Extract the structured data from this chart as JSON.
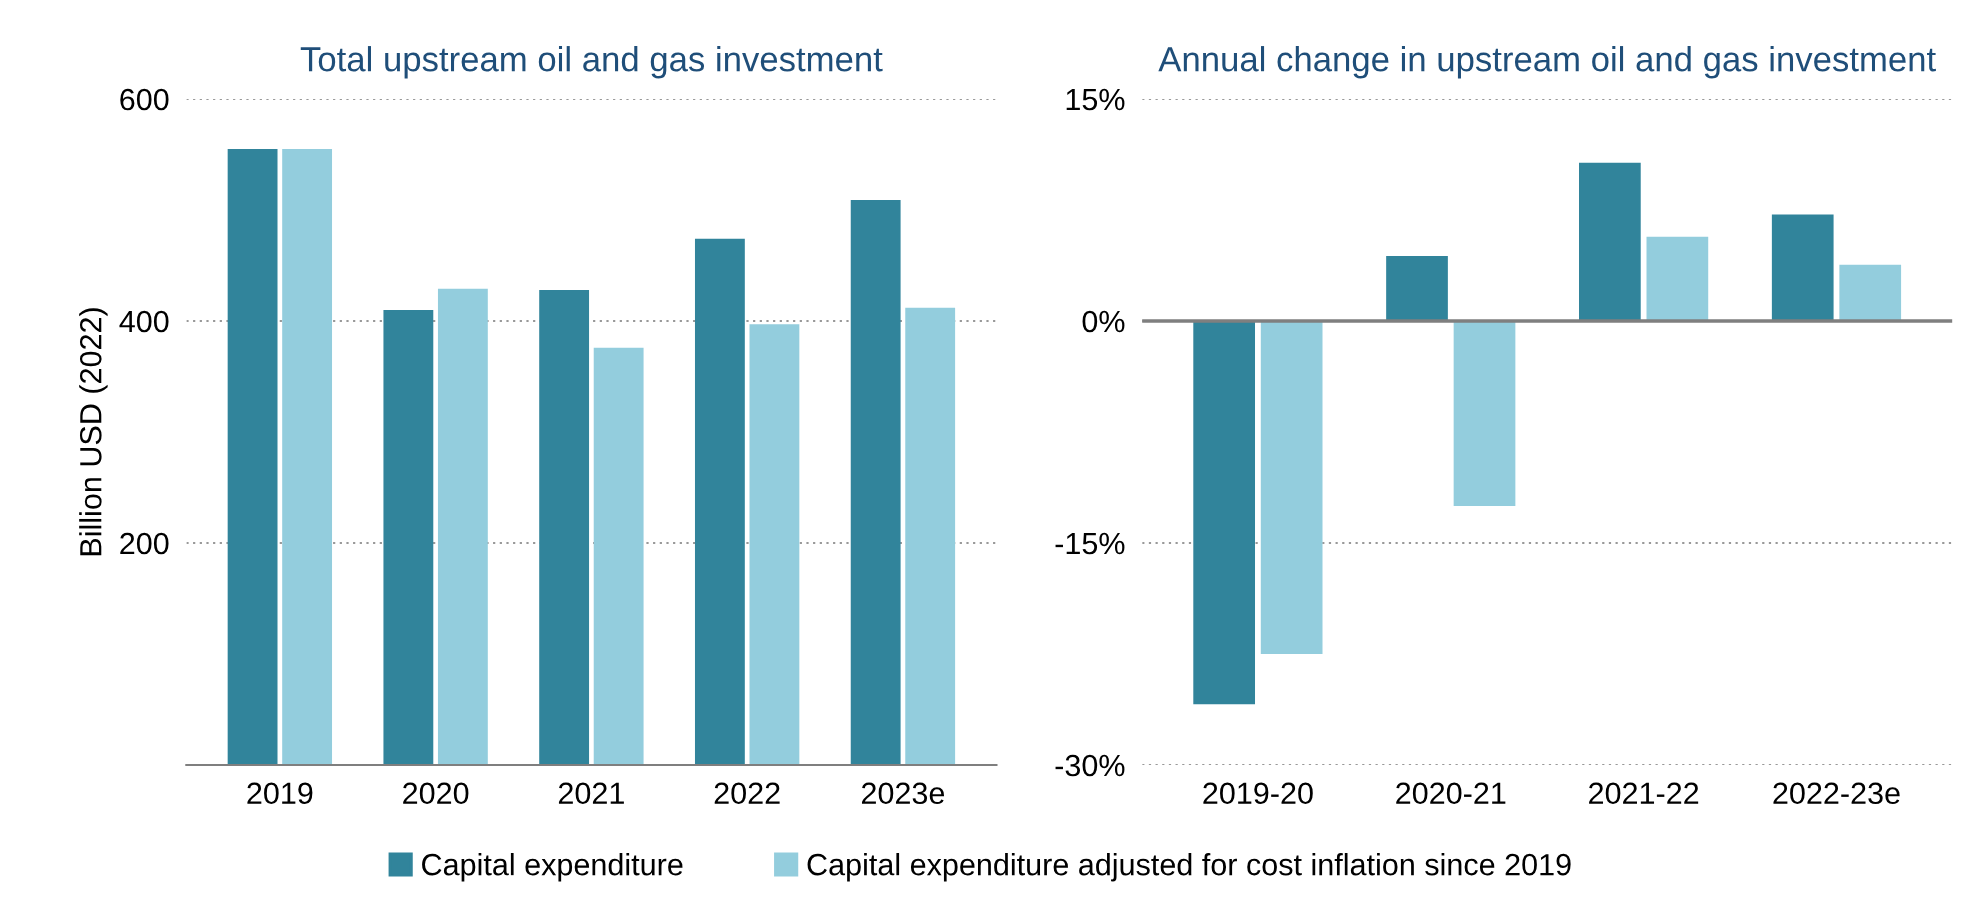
{
  "chart_data": [
    {
      "type": "bar",
      "title": "Total upstream oil and gas investment",
      "ylabel": "Billion USD (2022)",
      "categories": [
        "2019",
        "2020",
        "2021",
        "2022",
        "2023e"
      ],
      "series": [
        {
          "name": "Capital expenditure",
          "color": "#31849b",
          "values": [
            555,
            410,
            428,
            474,
            509
          ]
        },
        {
          "name": "Capital expenditure adjusted for cost inflation since 2019",
          "color": "#93cddd",
          "values": [
            555,
            429,
            376,
            397,
            412
          ]
        }
      ],
      "ylim": [
        0,
        600
      ],
      "yticks": [
        200,
        400,
        600
      ],
      "grid": "y",
      "legend": "bottom"
    },
    {
      "type": "bar",
      "title": "Annual change in upstream oil and gas investment",
      "categories": [
        "2019-20",
        "2020-21",
        "2021-22",
        "2022-23e"
      ],
      "series": [
        {
          "color": "#31849b",
          "values": [
            -25.9,
            4.4,
            10.7,
            7.2
          ]
        },
        {
          "color": "#93cddd",
          "values": [
            -22.5,
            -12.5,
            5.7,
            3.8
          ]
        }
      ],
      "ylim": [
        -30,
        15
      ],
      "yticks": [
        {
          "value": -30,
          "label": "-30%"
        },
        {
          "value": -15,
          "label": "-15%"
        },
        {
          "value": 0,
          "label": "0%"
        },
        {
          "value": 15,
          "label": "15%"
        }
      ],
      "grid": "y",
      "ref_lines": [
        {
          "axis": "y",
          "value": 0,
          "label": null,
          "color": "#7f7f7f"
        }
      ]
    }
  ]
}
